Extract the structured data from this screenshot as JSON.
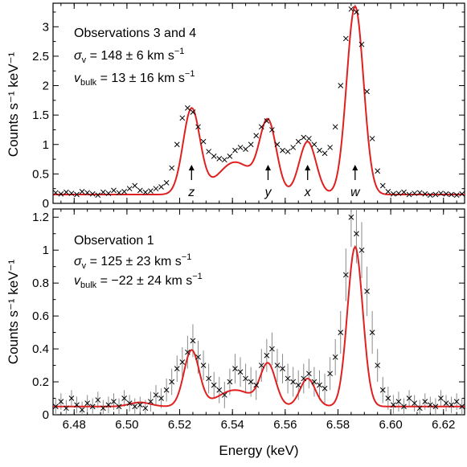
{
  "chart_data": [
    {
      "type": "line",
      "xlabel": "",
      "ylabel": "Counts s⁻¹ keV⁻¹",
      "xlim": [
        6.472,
        6.628
      ],
      "ylim": [
        0,
        3.4
      ],
      "yticks": [
        0,
        0.5,
        1,
        1.5,
        2,
        2.5,
        3
      ],
      "ytick_labels": [
        "0",
        "0.5",
        "1",
        "1.5",
        "2",
        "2.5",
        "3"
      ],
      "annotation": {
        "title": "Observations 3 and 4",
        "sigma_sym": "σ",
        "sigma_sub": "v",
        "sigma_val": " = 148 ± 6 km s",
        "bulk_sym": "v",
        "bulk_sub": "bulk",
        "bulk_val": " = 13 ± 16 km s",
        "exp": "−1"
      },
      "line_markers": [
        {
          "label": "z",
          "x": 6.5245
        },
        {
          "label": "y",
          "x": 6.5535
        },
        {
          "label": "x",
          "x": 6.5685
        },
        {
          "label": "w",
          "x": 6.5865
        }
      ],
      "model": {
        "baseline": 0.15,
        "lines": [
          {
            "center": 6.5245,
            "amp": 1.45
          },
          {
            "center": 6.5535,
            "amp": 1.2
          },
          {
            "center": 6.5685,
            "amp": 0.9
          },
          {
            "center": 6.5865,
            "amp": 3.2
          }
        ],
        "broad": [
          {
            "center": 6.541,
            "amp": 0.55,
            "sigma": 0.0065
          }
        ],
        "sigma": 0.0032
      },
      "series": [
        {
          "name": "",
          "style": "data",
          "color": "#000000",
          "x": [
            6.473,
            6.475,
            6.477,
            6.479,
            6.481,
            6.483,
            6.485,
            6.487,
            6.489,
            6.491,
            6.493,
            6.495,
            6.497,
            6.499,
            6.501,
            6.503,
            6.505,
            6.507,
            6.509,
            6.511,
            6.513,
            6.515,
            6.517,
            6.519,
            6.521,
            6.523,
            6.525,
            6.527,
            6.529,
            6.531,
            6.533,
            6.535,
            6.537,
            6.539,
            6.541,
            6.543,
            6.545,
            6.547,
            6.549,
            6.551,
            6.553,
            6.555,
            6.557,
            6.559,
            6.561,
            6.563,
            6.565,
            6.567,
            6.569,
            6.571,
            6.573,
            6.575,
            6.577,
            6.579,
            6.581,
            6.583,
            6.585,
            6.587,
            6.589,
            6.591,
            6.593,
            6.595,
            6.597,
            6.599,
            6.601,
            6.603,
            6.605,
            6.607,
            6.609,
            6.611,
            6.613,
            6.615,
            6.617,
            6.619,
            6.621,
            6.623,
            6.625,
            6.627
          ],
          "y": [
            0.18,
            0.16,
            0.19,
            0.17,
            0.15,
            0.2,
            0.18,
            0.16,
            0.14,
            0.19,
            0.17,
            0.22,
            0.18,
            0.2,
            0.25,
            0.3,
            0.22,
            0.19,
            0.21,
            0.25,
            0.28,
            0.35,
            0.6,
            1.0,
            1.45,
            1.62,
            1.55,
            1.3,
            1.05,
            0.88,
            0.8,
            0.76,
            0.74,
            0.8,
            0.9,
            0.95,
            0.92,
            1.0,
            1.15,
            1.3,
            1.4,
            1.25,
            1.0,
            0.9,
            0.88,
            0.95,
            1.05,
            1.12,
            1.1,
            1.0,
            0.9,
            0.85,
            0.95,
            1.3,
            2.0,
            2.8,
            3.3,
            3.25,
            2.7,
            1.9,
            1.1,
            0.55,
            0.3,
            0.2,
            0.16,
            0.17,
            0.19,
            0.15,
            0.17,
            0.18,
            0.16,
            0.14,
            0.15,
            0.17,
            0.16,
            0.15,
            0.14,
            0.16
          ]
        },
        {
          "name": "",
          "style": "model",
          "color": "#e02020"
        }
      ]
    },
    {
      "type": "line",
      "xlabel": "Energy (keV)",
      "ylabel": "Counts s⁻¹ keV⁻¹",
      "xlim": [
        6.472,
        6.628
      ],
      "ylim": [
        0,
        1.25
      ],
      "xticks": [
        6.48,
        6.5,
        6.52,
        6.54,
        6.56,
        6.58,
        6.6,
        6.62
      ],
      "xtick_labels": [
        "6.48",
        "6.50",
        "6.52",
        "6.54",
        "6.56",
        "6.58",
        "6.60",
        "6.62"
      ],
      "yticks": [
        0,
        0.2,
        0.4,
        0.6,
        0.8,
        1.0,
        1.2
      ],
      "ytick_labels": [
        "0",
        "0.2",
        "0.4",
        "0.6",
        "0.8",
        "1",
        "1.2"
      ],
      "annotation": {
        "title": "Observation 1",
        "sigma_sym": "σ",
        "sigma_sub": "v",
        "sigma_val": " = 125 ± 23 km s",
        "bulk_sym": "v",
        "bulk_sub": "bulk",
        "bulk_val": " = −22 ± 24 km s",
        "exp": "−1"
      },
      "model": {
        "baseline": 0.05,
        "lines": [
          {
            "center": 6.5245,
            "amp": 0.34
          },
          {
            "center": 6.5535,
            "amp": 0.25
          },
          {
            "center": 6.5685,
            "amp": 0.17
          },
          {
            "center": 6.5865,
            "amp": 0.97
          }
        ],
        "broad": [
          {
            "center": 6.541,
            "amp": 0.1,
            "sigma": 0.0065
          },
          {
            "center": 6.505,
            "amp": 0.025,
            "sigma": 0.004
          }
        ],
        "sigma": 0.0029
      },
      "series": [
        {
          "name": "",
          "style": "data",
          "color": "#000000",
          "x": [
            6.473,
            6.475,
            6.477,
            6.479,
            6.481,
            6.483,
            6.485,
            6.487,
            6.489,
            6.491,
            6.493,
            6.495,
            6.497,
            6.499,
            6.501,
            6.503,
            6.505,
            6.507,
            6.509,
            6.511,
            6.513,
            6.515,
            6.517,
            6.519,
            6.521,
            6.523,
            6.525,
            6.527,
            6.529,
            6.531,
            6.533,
            6.535,
            6.537,
            6.539,
            6.541,
            6.543,
            6.545,
            6.547,
            6.549,
            6.551,
            6.553,
            6.555,
            6.557,
            6.559,
            6.561,
            6.563,
            6.565,
            6.567,
            6.569,
            6.571,
            6.573,
            6.575,
            6.577,
            6.579,
            6.581,
            6.583,
            6.585,
            6.587,
            6.589,
            6.591,
            6.593,
            6.595,
            6.597,
            6.599,
            6.601,
            6.603,
            6.605,
            6.607,
            6.609,
            6.611,
            6.613,
            6.615,
            6.617,
            6.619,
            6.621,
            6.623,
            6.625,
            6.627
          ],
          "y": [
            0.05,
            0.08,
            0.04,
            0.1,
            0.06,
            0.03,
            0.07,
            0.05,
            0.09,
            0.04,
            0.06,
            0.08,
            0.05,
            0.1,
            0.07,
            0.05,
            0.06,
            0.04,
            0.08,
            0.12,
            0.1,
            0.15,
            0.2,
            0.28,
            0.32,
            0.38,
            0.45,
            0.35,
            0.3,
            0.22,
            0.18,
            0.15,
            0.12,
            0.2,
            0.28,
            0.26,
            0.22,
            0.2,
            0.18,
            0.3,
            0.36,
            0.4,
            0.3,
            0.28,
            0.22,
            0.2,
            0.18,
            0.22,
            0.25,
            0.2,
            0.18,
            0.16,
            0.25,
            0.35,
            0.5,
            0.85,
            1.2,
            1.1,
            1.0,
            0.75,
            0.5,
            0.3,
            0.15,
            0.1,
            0.06,
            0.08,
            0.05,
            0.1,
            0.07,
            0.04,
            0.08,
            0.06,
            0.05,
            0.1,
            0.07,
            0.06,
            0.08,
            0.05
          ],
          "err": [
            0.05,
            0.05,
            0.05,
            0.05,
            0.05,
            0.05,
            0.05,
            0.05,
            0.05,
            0.05,
            0.05,
            0.05,
            0.05,
            0.05,
            0.05,
            0.05,
            0.05,
            0.05,
            0.06,
            0.06,
            0.06,
            0.07,
            0.08,
            0.08,
            0.09,
            0.1,
            0.1,
            0.1,
            0.09,
            0.09,
            0.08,
            0.08,
            0.08,
            0.08,
            0.09,
            0.09,
            0.09,
            0.09,
            0.09,
            0.1,
            0.1,
            0.1,
            0.1,
            0.09,
            0.09,
            0.09,
            0.09,
            0.09,
            0.09,
            0.09,
            0.09,
            0.09,
            0.1,
            0.11,
            0.13,
            0.16,
            0.18,
            0.18,
            0.17,
            0.15,
            0.13,
            0.1,
            0.08,
            0.07,
            0.06,
            0.06,
            0.05,
            0.05,
            0.05,
            0.05,
            0.05,
            0.05,
            0.05,
            0.05,
            0.05,
            0.05,
            0.05,
            0.05
          ]
        },
        {
          "name": "",
          "style": "model",
          "color": "#e02020"
        }
      ]
    }
  ]
}
